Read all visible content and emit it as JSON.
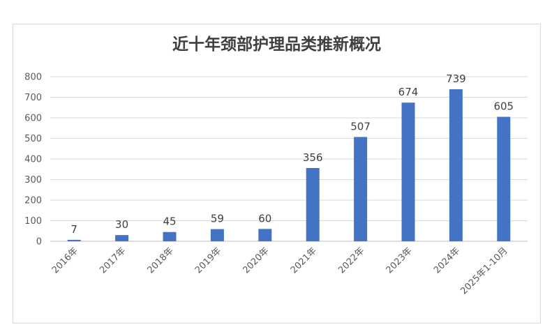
{
  "chart_data": {
    "type": "bar",
    "title": "近十年颈部护理品类推新概况",
    "categories": [
      "2016年",
      "2017年",
      "2018年",
      "2019年",
      "2020年",
      "2021年",
      "2022年",
      "2023年",
      "2024年",
      "2025年1-10月"
    ],
    "values": [
      7,
      30,
      45,
      59,
      60,
      356,
      507,
      674,
      739,
      605
    ],
    "ylim": [
      0,
      800
    ],
    "yticks": [
      0,
      100,
      200,
      300,
      400,
      500,
      600,
      700,
      800
    ],
    "grid": true,
    "legend": "none",
    "bar_color": "#4472c4",
    "grid_color": "#d9d9d9"
  }
}
